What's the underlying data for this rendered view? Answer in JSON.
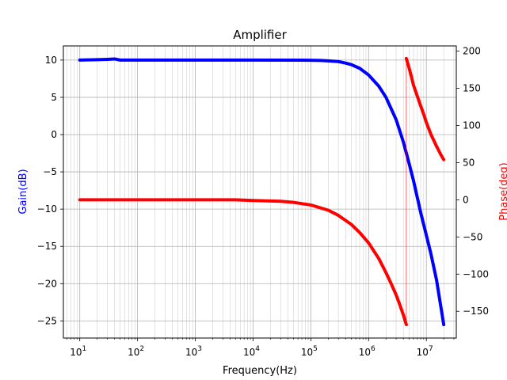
{
  "chart_data": {
    "type": "line",
    "title": "Amplifier",
    "xlabel": "Frequency(Hz)",
    "ylabel_left": "Gain(dB)",
    "ylabel_right": "Phase(deg)",
    "xscale": "log",
    "xlim": [
      5.2,
      33000000
    ],
    "ylim_left": [
      -27.3,
      11.9
    ],
    "ylim_right": [
      -186,
      207
    ],
    "grid": true,
    "x_ticks": [
      {
        "value": 10,
        "base": "10",
        "exp": "1"
      },
      {
        "value": 100,
        "base": "10",
        "exp": "2"
      },
      {
        "value": 1000,
        "base": "10",
        "exp": "3"
      },
      {
        "value": 10000,
        "base": "10",
        "exp": "4"
      },
      {
        "value": 100000,
        "base": "10",
        "exp": "5"
      },
      {
        "value": 1000000,
        "base": "10",
        "exp": "6"
      },
      {
        "value": 10000000,
        "base": "10",
        "exp": "7"
      }
    ],
    "y_left_ticks": [
      "10",
      "5",
      "0",
      "−5",
      "−10",
      "−15",
      "−20",
      "−25"
    ],
    "y_left_tick_values": [
      10,
      5,
      0,
      -5,
      -10,
      -15,
      -20,
      -25
    ],
    "y_right_ticks": [
      "200",
      "150",
      "100",
      "50",
      "0",
      "−50",
      "−100",
      "−150"
    ],
    "y_right_tick_values": [
      200,
      150,
      100,
      50,
      0,
      -50,
      -100,
      -150
    ],
    "colors": {
      "gain": "#0000ff",
      "phase": "#ff0000",
      "grid": "#b0b0b0",
      "left_label": "#0000ff",
      "right_label": "#ff0000"
    },
    "series": [
      {
        "axis": "left",
        "color": "#0000ff",
        "x": [
          10,
          20,
          30,
          40,
          50,
          100,
          1000,
          10000,
          100000,
          150000,
          200000,
          300000,
          400000,
          500000,
          700000,
          1000000,
          1500000,
          2000000,
          3000000,
          4000000,
          5000000,
          6000000,
          7000000,
          8000000,
          10000000,
          12000000,
          15000000,
          20000000
        ],
        "y": [
          10.0,
          10.05,
          10.1,
          10.15,
          10.0,
          10.0,
          10.0,
          10.0,
          9.98,
          9.95,
          9.9,
          9.8,
          9.6,
          9.4,
          8.9,
          8.0,
          6.5,
          5.0,
          2.0,
          -1.0,
          -3.8,
          -6.2,
          -8.5,
          -10.5,
          -13.5,
          -16.0,
          -19.5,
          -25.5
        ]
      },
      {
        "axis": "right",
        "color": "#ff0000",
        "x": [
          10,
          100,
          1000,
          5000,
          10000,
          30000,
          50000,
          100000,
          200000,
          300000,
          500000,
          700000,
          1000000,
          1500000,
          2000000,
          2500000,
          3000000,
          3500000,
          4000000,
          4500000
        ],
        "y": [
          0,
          0,
          0,
          0,
          -1,
          -2,
          -3.5,
          -7,
          -14,
          -21,
          -33,
          -44,
          -58,
          -79,
          -98,
          -114,
          -128,
          -142,
          -155,
          -168
        ]
      },
      {
        "axis": "right",
        "color": "#ff0000",
        "x": [
          4500000,
          5000000,
          5500000,
          6000000,
          7000000,
          8000000,
          9000000,
          10000000,
          12000000,
          15000000,
          18000000,
          20000000
        ],
        "y": [
          190,
          178,
          166,
          154,
          139,
          126,
          115,
          104,
          88,
          72,
          60,
          54
        ]
      }
    ]
  }
}
